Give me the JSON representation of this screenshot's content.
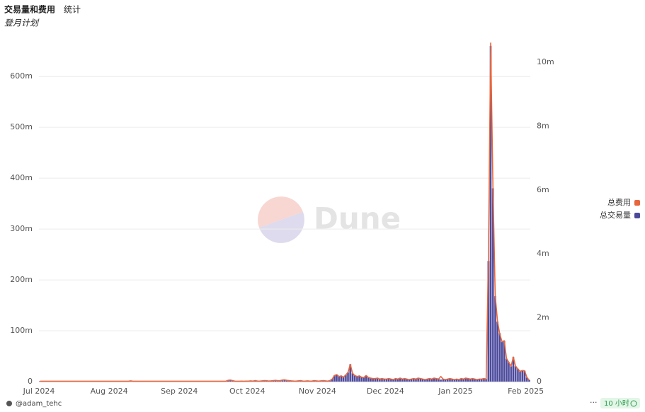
{
  "chart_data": {
    "type": "bar",
    "title": "交易量和费用",
    "tab": "统计",
    "subtitle": "登月计划",
    "watermark": "Dune",
    "categories": [
      "Jul 2024",
      null,
      null,
      null,
      null,
      null,
      null,
      null,
      null,
      null,
      null,
      null,
      null,
      null,
      null,
      null,
      null,
      null,
      null,
      null,
      null,
      null,
      null,
      null,
      null,
      null,
      null,
      null,
      null,
      null,
      null,
      "Aug 2024",
      null,
      null,
      null,
      null,
      null,
      null,
      null,
      null,
      null,
      null,
      null,
      null,
      null,
      null,
      null,
      null,
      null,
      null,
      null,
      null,
      null,
      null,
      null,
      null,
      null,
      null,
      null,
      null,
      null,
      null,
      "Sep 2024",
      null,
      null,
      null,
      null,
      null,
      null,
      null,
      null,
      null,
      null,
      null,
      null,
      null,
      null,
      null,
      null,
      null,
      null,
      null,
      null,
      null,
      null,
      null,
      null,
      null,
      null,
      null,
      null,
      null,
      "Oct 2024",
      null,
      null,
      null,
      null,
      null,
      null,
      null,
      null,
      null,
      null,
      null,
      null,
      null,
      null,
      null,
      null,
      null,
      null,
      null,
      null,
      null,
      null,
      null,
      null,
      null,
      null,
      null,
      null,
      null,
      null,
      "Nov 2024",
      null,
      null,
      null,
      null,
      null,
      null,
      null,
      null,
      null,
      null,
      null,
      null,
      null,
      null,
      null,
      null,
      null,
      null,
      null,
      null,
      null,
      null,
      null,
      null,
      null,
      null,
      null,
      null,
      null,
      "Dec 2024",
      null,
      null,
      null,
      null,
      null,
      null,
      null,
      null,
      null,
      null,
      null,
      null,
      null,
      null,
      null,
      null,
      null,
      null,
      null,
      null,
      null,
      null,
      null,
      null,
      null,
      null,
      null,
      null,
      null,
      null,
      "Jan 2025",
      null,
      null,
      null,
      null,
      null,
      null,
      null,
      null,
      null,
      null,
      null,
      null,
      null,
      null,
      null,
      null,
      null,
      null,
      null,
      null,
      null,
      null,
      null,
      null,
      null,
      null,
      null,
      null,
      null,
      null,
      "Feb 2025",
      null
    ],
    "series": [
      {
        "name": "总费用",
        "color": "#e8663d",
        "type": "line",
        "axis": "y2",
        "values": [
          13000.0,
          13000.0,
          13000.0,
          13000.0,
          13000.0,
          13000.0,
          13000.0,
          13000.0,
          13000.0,
          13000.0,
          13000.0,
          13000.0,
          13000.0,
          13000.0,
          13000.0,
          13000.0,
          13000.0,
          13000.0,
          13000.0,
          13000.0,
          13000.0,
          13000.0,
          13000.0,
          13000.0,
          13000.0,
          13000.0,
          13000.0,
          13000.0,
          13000.0,
          13000.0,
          13000.0,
          13000.0,
          13000.0,
          13000.0,
          13000.0,
          13000.0,
          13000.0,
          13000.0,
          13000.0,
          13000.0,
          24000.0,
          13000.0,
          13000.0,
          13000.0,
          13000.0,
          13000.0,
          13000.0,
          13000.0,
          13000.0,
          13000.0,
          13000.0,
          13000.0,
          13000.0,
          13000.0,
          13000.0,
          13000.0,
          13000.0,
          13000.0,
          13000.0,
          13000.0,
          13000.0,
          13000.0,
          13000.0,
          13000.0,
          13000.0,
          13000.0,
          13000.0,
          13000.0,
          13000.0,
          13000.0,
          13000.0,
          13000.0,
          13000.0,
          13000.0,
          13000.0,
          13000.0,
          13000.0,
          13000.0,
          13000.0,
          13000.0,
          13000.0,
          13000.0,
          13000.0,
          40000.0,
          50000.0,
          32000.0,
          16000.0,
          13000.0,
          13000.0,
          16000.0,
          13000.0,
          16000.0,
          16000.0,
          24000.0,
          16000.0,
          32000.0,
          19000.0,
          16000.0,
          24000.0,
          32000.0,
          29000.0,
          19000.0,
          24000.0,
          32000.0,
          40000.0,
          29000.0,
          32000.0,
          48000.0,
          56000.0,
          40000.0,
          32000.0,
          24000.0,
          19000.0,
          16000.0,
          24000.0,
          32000.0,
          19000.0,
          16000.0,
          24000.0,
          19000.0,
          16000.0,
          32000.0,
          24000.0,
          16000.0,
          24000.0,
          32000.0,
          24000.0,
          16000.0,
          32000.0,
          80000.0,
          190000.0,
          220000.0,
          160000.0,
          180000.0,
          140000.0,
          210000.0,
          290000.0,
          540000.0,
          260000.0,
          190000.0,
          160000.0,
          180000.0,
          140000.0,
          130000.0,
          190000.0,
          130000.0,
          110000.0,
          96000.0,
          96000.0,
          110000.0,
          80000.0,
          96000.0,
          80000.0,
          80000.0,
          96000.0,
          80000.0,
          64000.0,
          96000.0,
          80000.0,
          110000.0,
          80000.0,
          96000.0,
          80000.0,
          64000.0,
          80000.0,
          96000.0,
          80000.0,
          110000.0,
          96000.0,
          80000.0,
          64000.0,
          80000.0,
          96000.0,
          80000.0,
          110000.0,
          96000.0,
          80000.0,
          160000.0,
          80000.0,
          64000.0,
          80000.0,
          96000.0,
          80000.0,
          64000.0,
          80000.0,
          64000.0,
          96000.0,
          80000.0,
          110000.0,
          96000.0,
          80000.0,
          96000.0,
          80000.0,
          64000.0,
          80000.0,
          80000.0,
          96000.0,
          80000.0,
          3800000.0,
          10600000.0,
          6100000.0,
          2700000.0,
          1900000.0,
          1500000.0,
          1250000.0,
          1280000.0,
          720000.0,
          610000.0,
          480000.0,
          770000.0,
          480000.0,
          400000.0,
          320000.0,
          350000.0,
          340000.0,
          130000.0,
          48000.0
        ]
      },
      {
        "name": "总交易量",
        "color": "#4b4a9a",
        "type": "bar",
        "values": [
          800000.0,
          800000.0,
          800000.0,
          800000.0,
          800000.0,
          800000.0,
          800000.0,
          800000.0,
          800000.0,
          800000.0,
          800000.0,
          800000.0,
          800000.0,
          800000.0,
          800000.0,
          800000.0,
          800000.0,
          800000.0,
          800000.0,
          800000.0,
          800000.0,
          800000.0,
          800000.0,
          800000.0,
          800000.0,
          800000.0,
          800000.0,
          800000.0,
          800000.0,
          800000.0,
          800000.0,
          800000.0,
          800000.0,
          800000.0,
          800000.0,
          800000.0,
          800000.0,
          800000.0,
          800000.0,
          800000.0,
          1500000.0,
          800000.0,
          800000.0,
          800000.0,
          800000.0,
          800000.0,
          800000.0,
          800000.0,
          800000.0,
          800000.0,
          800000.0,
          800000.0,
          800000.0,
          800000.0,
          800000.0,
          800000.0,
          800000.0,
          800000.0,
          800000.0,
          800000.0,
          800000.0,
          800000.0,
          800000.0,
          800000.0,
          800000.0,
          800000.0,
          800000.0,
          800000.0,
          800000.0,
          800000.0,
          800000.0,
          800000.0,
          800000.0,
          800000.0,
          800000.0,
          800000.0,
          800000.0,
          800000.0,
          800000.0,
          800000.0,
          800000.0,
          800000.0,
          800000.0,
          2500000.0,
          3000000.0,
          2000000.0,
          1000000.0,
          800000.0,
          800000.0,
          1000000.0,
          800000.0,
          1000000.0,
          1000000.0,
          1500000.0,
          1000000.0,
          2000000.0,
          1200000.0,
          1000000.0,
          1500000.0,
          2000000.0,
          1800000.0,
          1200000.0,
          1500000.0,
          2000000.0,
          2500000.0,
          1800000.0,
          2000000.0,
          3000000.0,
          3500000.0,
          2500000.0,
          2000000.0,
          1500000.0,
          1200000.0,
          1000000.0,
          1500000.0,
          2000000.0,
          1200000.0,
          1000000.0,
          1500000.0,
          1200000.0,
          1000000.0,
          2000000.0,
          1500000.0,
          1000000.0,
          1500000.0,
          2000000.0,
          1500000.0,
          1000000.0,
          2000000.0,
          5000000.0,
          12000000.0,
          14000000.0,
          10000000.0,
          11000000.0,
          9000000.0,
          13000000.0,
          18000000.0,
          34000000.0,
          16000000.0,
          12000000.0,
          10000000.0,
          11000000.0,
          9000000.0,
          8000000.0,
          12000000.0,
          8000000.0,
          7000000.0,
          6000000.0,
          6000000.0,
          7000000.0,
          5000000.0,
          6000000.0,
          5000000.0,
          5000000.0,
          6000000.0,
          5000000.0,
          4000000.0,
          6000000.0,
          5000000.0,
          7000000.0,
          5000000.0,
          6000000.0,
          5000000.0,
          4000000.0,
          5000000.0,
          6000000.0,
          5000000.0,
          7000000.0,
          6000000.0,
          5000000.0,
          4000000.0,
          5000000.0,
          6000000.0,
          5000000.0,
          7000000.0,
          6000000.0,
          5000000.0,
          4000000.0,
          5000000.0,
          4000000.0,
          5000000.0,
          6000000.0,
          5000000.0,
          4000000.0,
          5000000.0,
          4000000.0,
          6000000.0,
          5000000.0,
          7000000.0,
          6000000.0,
          5000000.0,
          6000000.0,
          5000000.0,
          4000000.0,
          5000000.0,
          5000000.0,
          6000000.0,
          5000000.0,
          237000000.0,
          660000000.0,
          380000000.0,
          168000000.0,
          118000000.0,
          95000000.0,
          78000000.0,
          80000000.0,
          45000000.0,
          38000000.0,
          30000000.0,
          48000000.0,
          30000000.0,
          25000000.0,
          20000000.0,
          22000000.0,
          21000000.0,
          8000000.0,
          3000000.0
        ]
      }
    ],
    "ylim": [
      0,
      667000000.0
    ],
    "yticks": [
      0,
      {
        "value": 100000000.0,
        "label": "100m"
      },
      {
        "value": 200000000.0,
        "label": "200m"
      },
      {
        "value": 300000000.0,
        "label": "300m"
      },
      {
        "value": 400000000.0,
        "label": "400m"
      },
      {
        "value": 500000000.0,
        "label": "500m"
      },
      {
        "value": 600000000.0,
        "label": "600m"
      }
    ],
    "y2lim": [
      0,
      10620000.0
    ],
    "y2ticks": [
      0,
      {
        "value": 2000000.0,
        "label": "2m"
      },
      {
        "value": 4000000.0,
        "label": "4m"
      },
      {
        "value": 6000000.0,
        "label": "6m"
      },
      {
        "value": 8000000.0,
        "label": "8m"
      },
      {
        "value": 10000000.0,
        "label": "10m"
      }
    ],
    "grid": true,
    "legend": "right"
  },
  "footer": {
    "author": "@adam_tehc",
    "age": "10 小时"
  }
}
